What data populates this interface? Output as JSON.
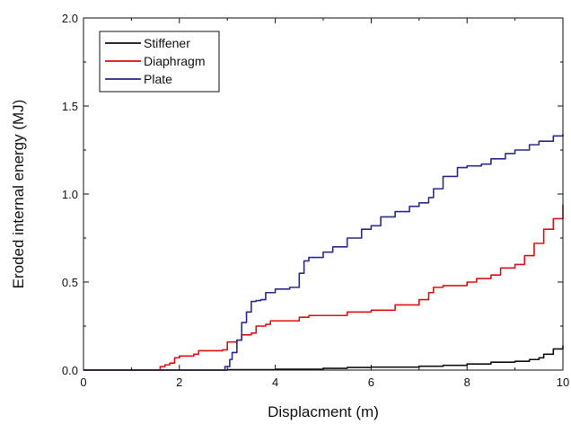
{
  "chart_data": {
    "type": "line",
    "title": "",
    "xlabel": "Displacment (m)",
    "ylabel": "Eroded internal energy (MJ)",
    "xlim": [
      0,
      10
    ],
    "ylim": [
      0,
      2.0
    ],
    "x_ticks": [
      "0",
      "2",
      "4",
      "6",
      "8",
      "10"
    ],
    "y_ticks": [
      "0.0",
      "0.5",
      "1.0",
      "1.5",
      "2.0"
    ],
    "grid": false,
    "legend_position": "top-left",
    "series": [
      {
        "name": "Stiffener",
        "color": "#111111",
        "x": [
          0,
          2.5,
          3.0,
          4.0,
          5.0,
          5.5,
          6.0,
          7.0,
          7.5,
          8.0,
          8.5,
          9.0,
          9.3,
          9.5,
          9.6,
          9.8,
          10.0
        ],
        "y": [
          0,
          0,
          0.002,
          0.005,
          0.01,
          0.015,
          0.017,
          0.022,
          0.027,
          0.035,
          0.045,
          0.05,
          0.06,
          0.07,
          0.09,
          0.12,
          0.14
        ]
      },
      {
        "name": "Diaphragm",
        "color": "#e01010",
        "x": [
          0,
          1.5,
          1.6,
          1.7,
          1.8,
          1.9,
          2.0,
          2.3,
          2.4,
          2.5,
          2.9,
          3.0,
          3.2,
          3.3,
          3.5,
          3.6,
          3.8,
          3.9,
          4.0,
          4.5,
          4.7,
          5.0,
          5.5,
          6.0,
          6.5,
          7.0,
          7.2,
          7.3,
          7.5,
          8.0,
          8.2,
          8.5,
          8.7,
          9.0,
          9.2,
          9.4,
          9.6,
          9.8,
          10.0
        ],
        "y": [
          0,
          0,
          0.02,
          0.03,
          0.04,
          0.07,
          0.08,
          0.09,
          0.11,
          0.11,
          0.115,
          0.16,
          0.17,
          0.2,
          0.21,
          0.25,
          0.26,
          0.28,
          0.28,
          0.3,
          0.31,
          0.31,
          0.33,
          0.34,
          0.37,
          0.4,
          0.44,
          0.47,
          0.48,
          0.5,
          0.52,
          0.54,
          0.58,
          0.6,
          0.65,
          0.72,
          0.8,
          0.86,
          0.94
        ]
      },
      {
        "name": "Plate",
        "color": "#2b2b8f",
        "x": [
          0,
          2.85,
          2.95,
          3.05,
          3.1,
          3.2,
          3.3,
          3.4,
          3.5,
          3.6,
          3.7,
          3.8,
          4.0,
          4.3,
          4.5,
          4.6,
          4.7,
          5.0,
          5.2,
          5.5,
          5.8,
          6.0,
          6.2,
          6.5,
          6.8,
          7.0,
          7.2,
          7.3,
          7.5,
          7.8,
          8.0,
          8.3,
          8.5,
          8.8,
          9.0,
          9.3,
          9.5,
          9.8,
          10.0
        ],
        "y": [
          0,
          0,
          0.02,
          0.06,
          0.1,
          0.17,
          0.27,
          0.33,
          0.39,
          0.395,
          0.4,
          0.44,
          0.46,
          0.47,
          0.55,
          0.62,
          0.64,
          0.67,
          0.7,
          0.75,
          0.8,
          0.82,
          0.87,
          0.9,
          0.93,
          0.95,
          0.98,
          1.03,
          1.1,
          1.15,
          1.16,
          1.17,
          1.2,
          1.23,
          1.25,
          1.28,
          1.3,
          1.33,
          1.34
        ]
      }
    ]
  }
}
